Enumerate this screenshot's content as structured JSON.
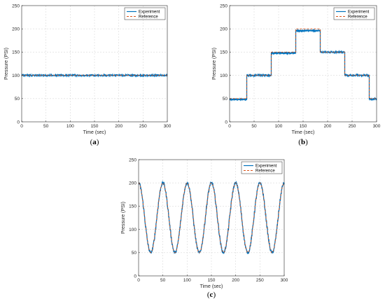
{
  "chart_data": [
    {
      "panel_label": "a",
      "type": "line",
      "xlabel": "Time (sec)",
      "ylabel": "Pressure (PSI)",
      "xlim": [
        0,
        300
      ],
      "ylim": [
        0,
        250
      ],
      "xticks": [
        0,
        50,
        100,
        150,
        200,
        250,
        300
      ],
      "yticks": [
        0,
        50,
        100,
        150,
        200,
        250
      ],
      "grid": true,
      "legend_position": "top-right",
      "colors": {
        "experiment": "#0072BD",
        "reference": "#D95319"
      },
      "series": [
        {
          "name": "Experiment",
          "style": "solid",
          "x": [
            0,
            300
          ],
          "y": [
            100,
            100
          ],
          "noise": 1.2
        },
        {
          "name": "Reference",
          "style": "dashed",
          "x": [
            0,
            300
          ],
          "y": [
            100,
            100
          ]
        }
      ]
    },
    {
      "panel_label": "b",
      "type": "line",
      "xlabel": "Time (sec)",
      "ylabel": "Pressure (PSI)",
      "xlim": [
        0,
        300
      ],
      "ylim": [
        0,
        250
      ],
      "xticks": [
        0,
        50,
        100,
        150,
        200,
        250,
        300
      ],
      "yticks": [
        0,
        50,
        100,
        150,
        200,
        250
      ],
      "grid": true,
      "legend_position": "top-right",
      "colors": {
        "experiment": "#0072BD",
        "reference": "#D95319"
      },
      "series": [
        {
          "name": "Experiment",
          "style": "solid",
          "x": [
            0,
            35,
            35,
            85,
            85,
            135,
            135,
            185,
            185,
            235,
            235,
            285,
            285,
            300
          ],
          "y": [
            48,
            48,
            100,
            100,
            148,
            148,
            196,
            196,
            150,
            150,
            100,
            100,
            49,
            49
          ],
          "noise": 1.5
        },
        {
          "name": "Reference",
          "style": "dashed",
          "x": [
            0,
            35,
            35,
            85,
            85,
            135,
            135,
            185,
            185,
            235,
            235,
            285,
            285,
            300
          ],
          "y": [
            50,
            50,
            100,
            100,
            150,
            150,
            200,
            200,
            150,
            150,
            100,
            100,
            50,
            50
          ]
        }
      ]
    },
    {
      "panel_label": "c",
      "type": "line",
      "xlabel": "Time (sec)",
      "ylabel": "Pressure (PSI)",
      "xlim": [
        0,
        300
      ],
      "ylim": [
        0,
        250
      ],
      "xticks": [
        0,
        50,
        100,
        150,
        200,
        250,
        300
      ],
      "yticks": [
        0,
        50,
        100,
        150,
        200,
        250
      ],
      "grid": true,
      "legend_position": "top-right",
      "colors": {
        "experiment": "#0072BD",
        "reference": "#D95319"
      },
      "series": [
        {
          "name": "Experiment",
          "style": "solid",
          "function": "125 + 75*sin(2*pi*t/50 + pi/2)",
          "x": [
            0,
            12.5,
            25,
            37.5,
            50,
            62.5,
            75,
            87.5,
            100,
            112.5,
            125,
            137.5,
            150,
            162.5,
            175,
            187.5,
            200,
            212.5,
            225,
            237.5,
            250,
            262.5,
            275,
            287.5,
            300
          ],
          "y": [
            200,
            125,
            50,
            125,
            200,
            125,
            50,
            125,
            200,
            125,
            50,
            125,
            200,
            125,
            50,
            125,
            200,
            125,
            50,
            125,
            200,
            125,
            50,
            125,
            200
          ],
          "noise": 2.0
        },
        {
          "name": "Reference",
          "style": "dashed",
          "function": "125 + 75*sin(2*pi*t/50 + pi/2)",
          "x": [
            0,
            12.5,
            25,
            37.5,
            50,
            62.5,
            75,
            87.5,
            100,
            112.5,
            125,
            137.5,
            150,
            162.5,
            175,
            187.5,
            200,
            212.5,
            225,
            237.5,
            250,
            262.5,
            275,
            287.5,
            300
          ],
          "y": [
            200,
            125,
            50,
            125,
            200,
            125,
            50,
            125,
            200,
            125,
            50,
            125,
            200,
            125,
            50,
            125,
            200,
            125,
            50,
            125,
            200,
            125,
            50,
            125,
            200
          ]
        }
      ]
    }
  ]
}
